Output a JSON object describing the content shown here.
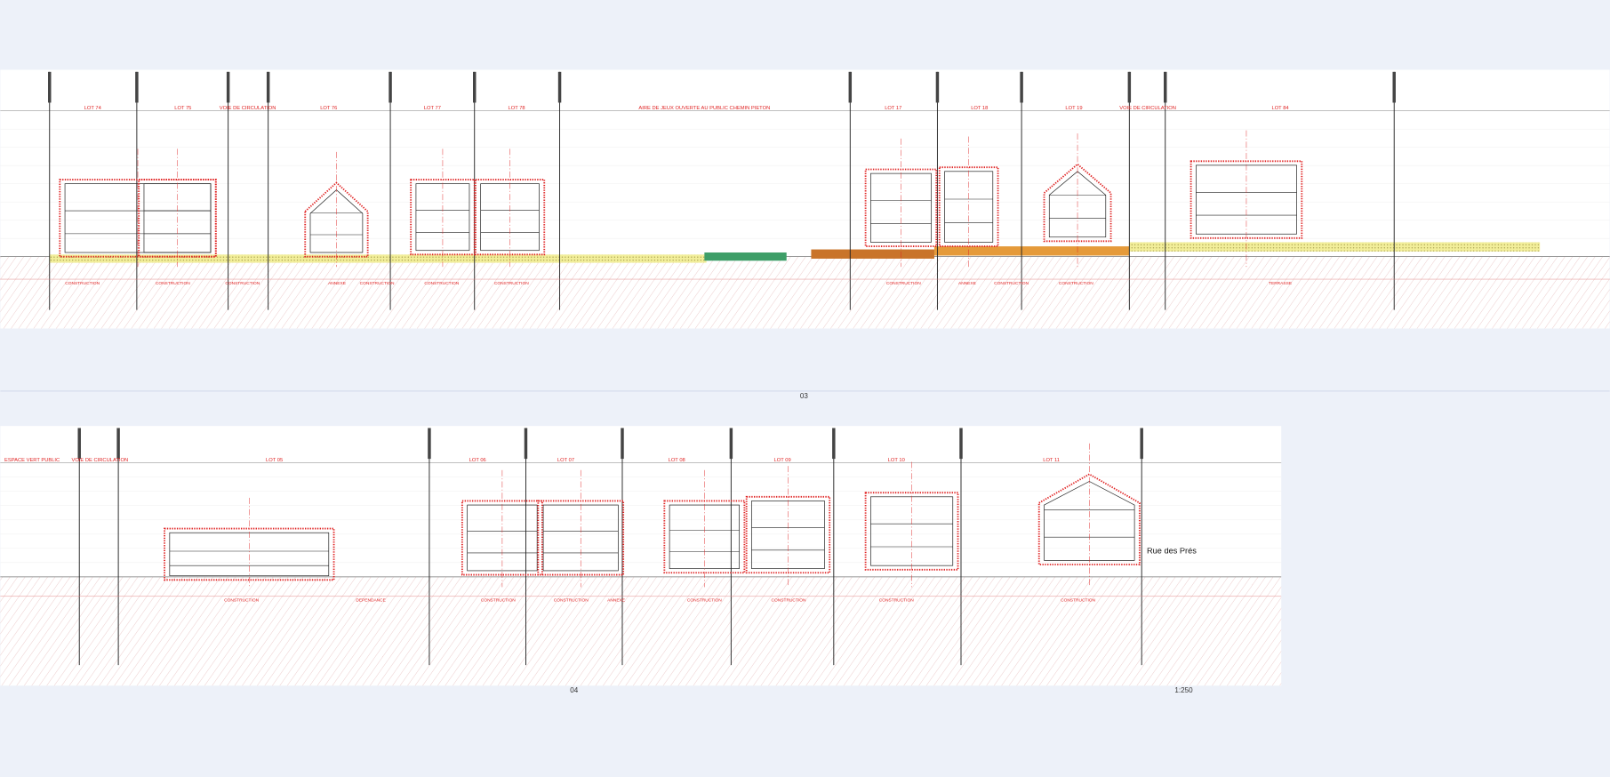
{
  "sheets": [
    {
      "number": "03",
      "lots": [
        "LOT 74",
        "LOT 75",
        "VOIE DE CIRCULATION",
        "LOT 76",
        "LOT 77",
        "LOT 78",
        "AIRE DE JEUX OUVERTE AU PUBLIC CHEMIN PIETON",
        "LOT 17",
        "LOT 18",
        "LOT 19",
        "VOIE DE CIRCULATION",
        "LOT 84"
      ],
      "notes": [
        "CONSTRUCTION",
        "CONSTRUCTION",
        "CONSTRUCTION",
        "ANNEXE",
        "CONSTRUCTION",
        "CONSTRUCTION",
        "CONSTRUCTION",
        "CONSTRUCTION",
        "ANNEXE",
        "CONSTRUCTION",
        "CONSTRUCTION",
        "TERRASSE"
      ]
    },
    {
      "number": "04",
      "lots": [
        "ESPACE VERT PUBLIC",
        "VOIE DE CIRCULATION",
        "LOT 05",
        "LOT 06",
        "LOT 07",
        "LOT 08",
        "LOT 09",
        "LOT 10",
        "LOT 11"
      ],
      "notes": [
        "CONSTRUCTION",
        "DEPENDANCE",
        "CONSTRUCTION",
        "CONSTRUCTION",
        "ANNEXE",
        "CONSTRUCTION",
        "CONSTRUCTION",
        "CONSTRUCTION",
        "CONSTRUCTION"
      ]
    }
  ],
  "street": "Rue des Prés",
  "scale": "1:250"
}
